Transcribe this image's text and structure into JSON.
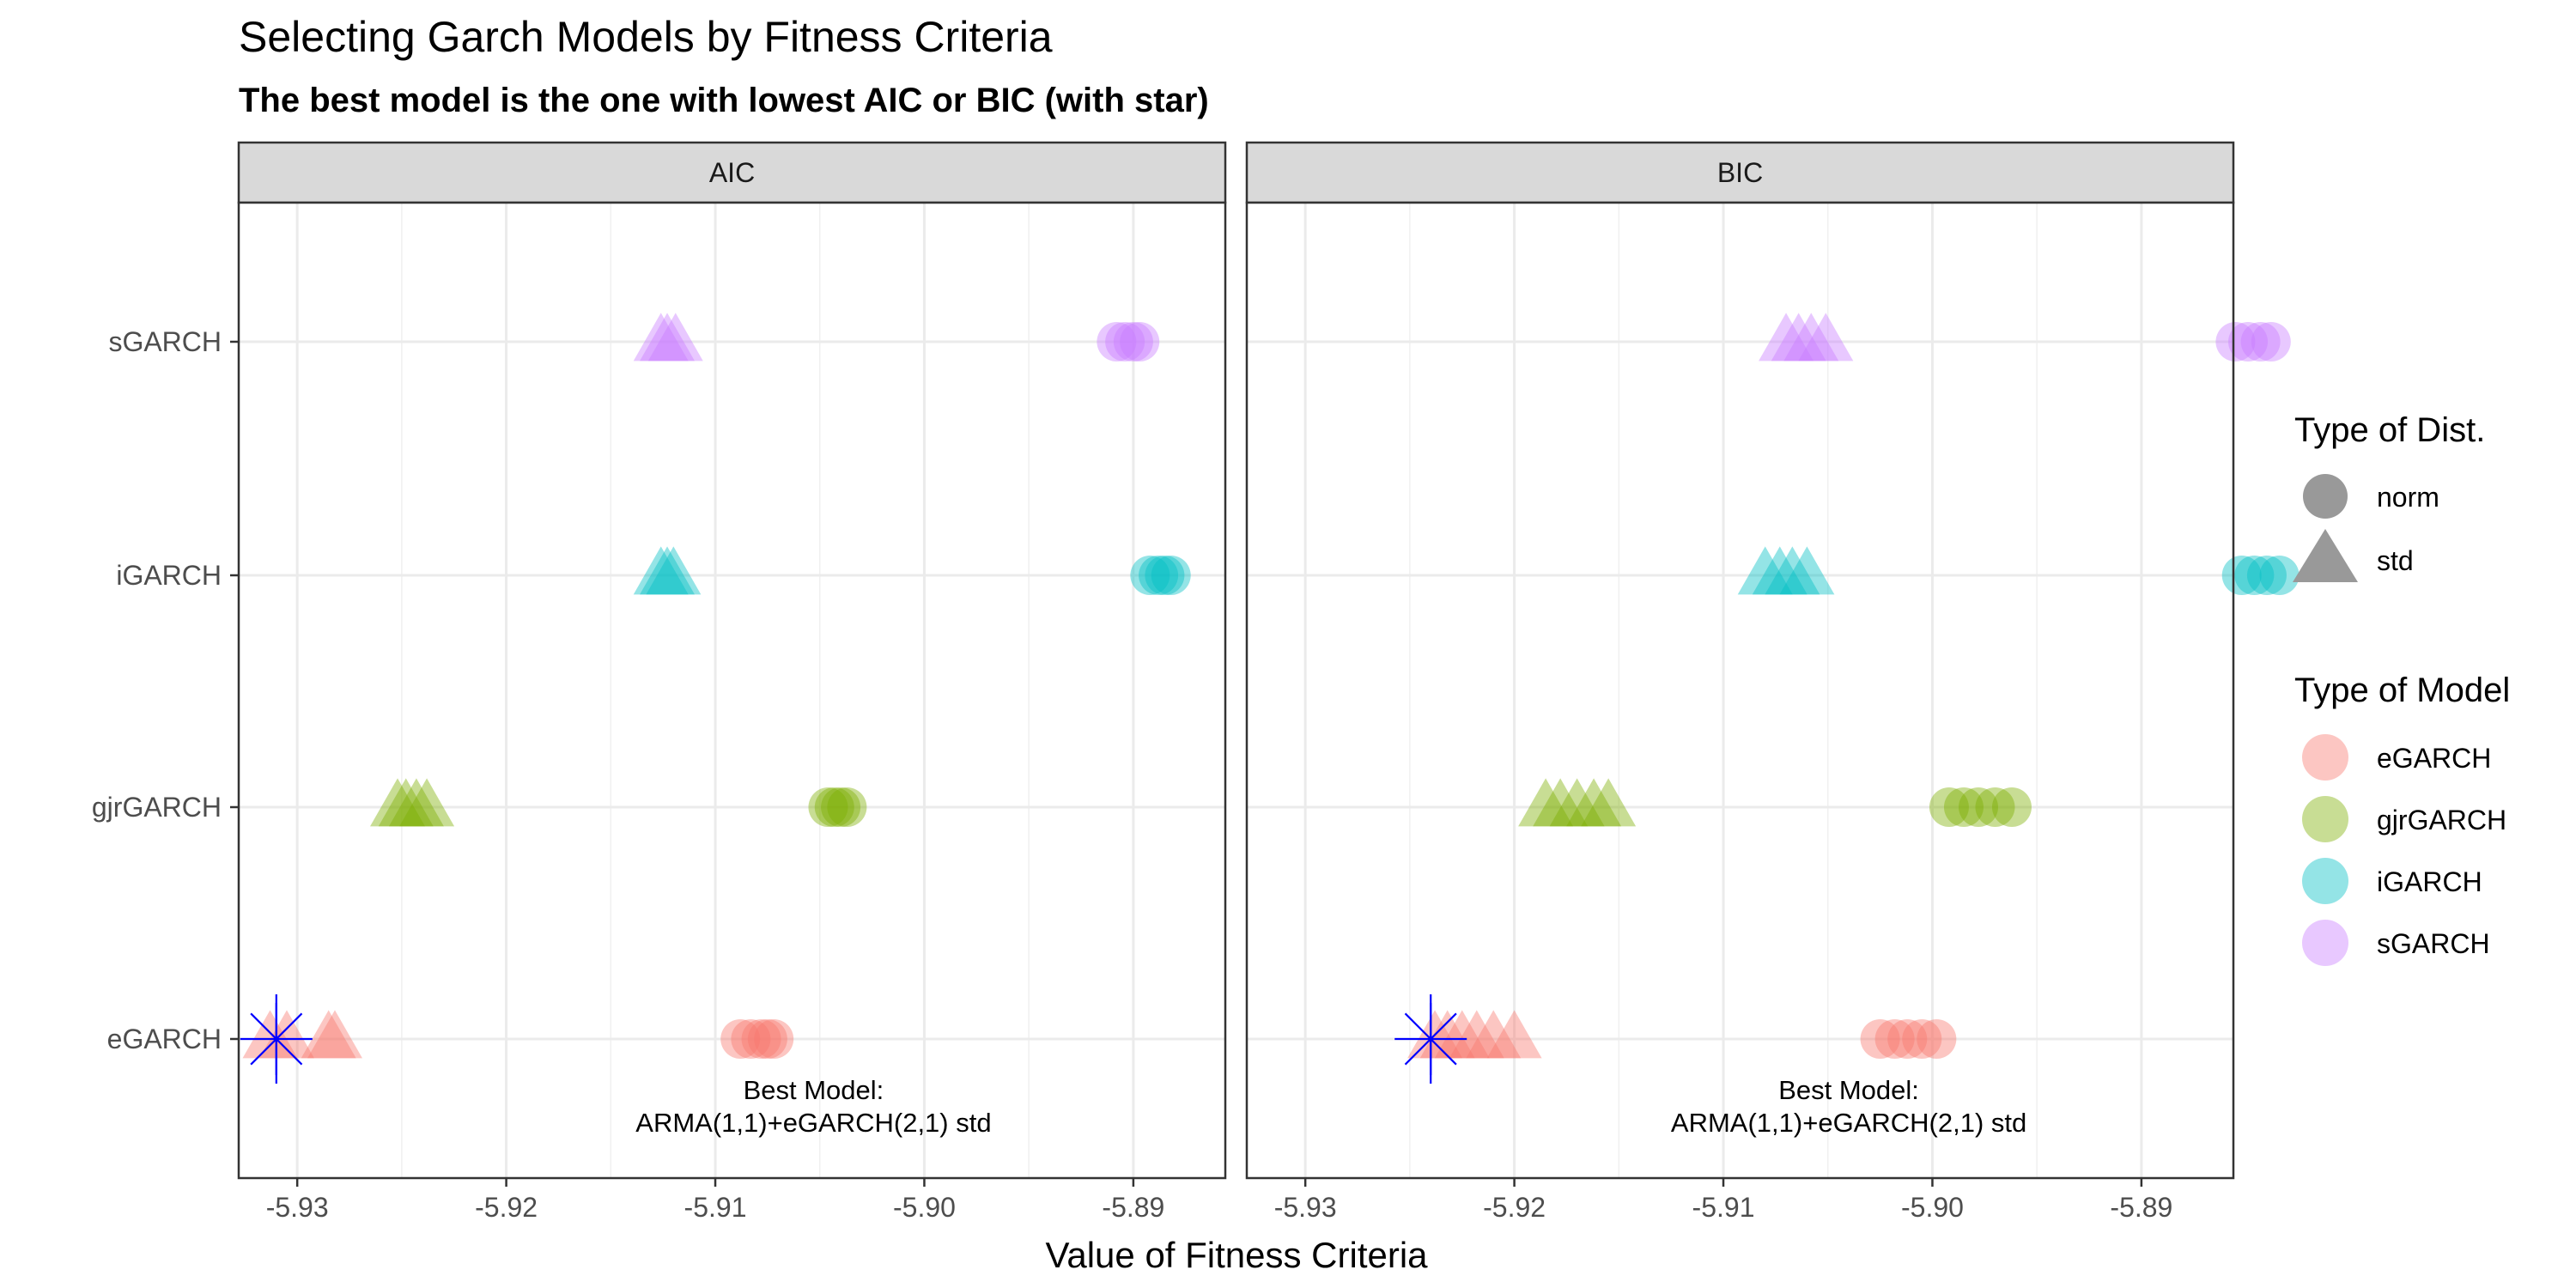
{
  "chart_data": {
    "type": "scatter",
    "title": "Selecting Garch Models by Fitness Criteria",
    "subtitle": "The best model is the one with lowest AIC or BIC (with star)",
    "xlabel": "Value of Fitness Criteria",
    "y_categories": [
      "eGARCH",
      "gjrGARCH",
      "iGARCH",
      "sGARCH"
    ],
    "x_ticks": [
      -5.93,
      -5.92,
      -5.91,
      -5.9,
      -5.89
    ],
    "x_tick_labels": [
      "-5.93",
      "-5.92",
      "-5.91",
      "-5.90",
      "-5.89"
    ],
    "xlim": [
      -5.9328,
      -5.8856
    ],
    "grid": true,
    "colors": {
      "eGARCH": "#F8766D",
      "gjrGARCH": "#7CAE00",
      "iGARCH": "#00BFC4",
      "sGARCH": "#C77CFF",
      "star": "#0000FF"
    },
    "legend": {
      "placement": "right",
      "shape_title": "Type of Dist.",
      "shape_entries": [
        {
          "label": "norm",
          "shape": "circle"
        },
        {
          "label": "std",
          "shape": "triangle"
        }
      ],
      "color_title": "Type of Model",
      "color_entries": [
        "eGARCH",
        "gjrGARCH",
        "iGARCH",
        "sGARCH"
      ]
    },
    "panels": [
      {
        "name": "AIC",
        "points": [
          {
            "model": "eGARCH",
            "dist": "std",
            "x": [
              -5.9313,
              -5.9305,
              -5.9285,
              -5.9282
            ]
          },
          {
            "model": "eGARCH",
            "dist": "norm",
            "x": [
              -5.9088,
              -5.9083,
              -5.9078,
              -5.9075,
              -5.9072
            ]
          },
          {
            "model": "gjrGARCH",
            "dist": "std",
            "x": [
              -5.9252,
              -5.9248,
              -5.9243,
              -5.9238
            ]
          },
          {
            "model": "gjrGARCH",
            "dist": "norm",
            "x": [
              -5.9046,
              -5.9043,
              -5.904,
              -5.9037
            ]
          },
          {
            "model": "iGARCH",
            "dist": "std",
            "x": [
              -5.9126,
              -5.9123,
              -5.912
            ]
          },
          {
            "model": "iGARCH",
            "dist": "norm",
            "x": [
              -5.8892,
              -5.8888,
              -5.8885,
              -5.8882
            ]
          },
          {
            "model": "sGARCH",
            "dist": "std",
            "x": [
              -5.9126,
              -5.9123,
              -5.9119
            ]
          },
          {
            "model": "sGARCH",
            "dist": "norm",
            "x": [
              -5.8908,
              -5.8904,
              -5.89,
              -5.8897
            ]
          }
        ],
        "best": {
          "model": "eGARCH",
          "x": -5.931
        },
        "annotation": [
          "Best Model:",
          "ARMA(1,1)+eGARCH(2,1) std"
        ],
        "annotation_x": -5.9053
      },
      {
        "name": "BIC",
        "points": [
          {
            "model": "eGARCH",
            "dist": "std",
            "x": [
              -5.9238,
              -5.9232,
              -5.9225,
              -5.9218,
              -5.921,
              -5.92
            ]
          },
          {
            "model": "eGARCH",
            "dist": "norm",
            "x": [
              -5.9025,
              -5.9018,
              -5.9012,
              -5.9005,
              -5.8998
            ]
          },
          {
            "model": "gjrGARCH",
            "dist": "std",
            "x": [
              -5.9185,
              -5.9178,
              -5.917,
              -5.9162,
              -5.9155
            ]
          },
          {
            "model": "gjrGARCH",
            "dist": "norm",
            "x": [
              -5.8992,
              -5.8985,
              -5.8978,
              -5.897,
              -5.8962
            ]
          },
          {
            "model": "iGARCH",
            "dist": "std",
            "x": [
              -5.908,
              -5.9073,
              -5.9067,
              -5.906
            ]
          },
          {
            "model": "iGARCH",
            "dist": "norm",
            "x": [
              -5.8852,
              -5.8846,
              -5.884,
              -5.8834
            ]
          },
          {
            "model": "sGARCH",
            "dist": "std",
            "x": [
              -5.907,
              -5.9064,
              -5.9058,
              -5.9051
            ]
          },
          {
            "model": "sGARCH",
            "dist": "norm",
            "x": [
              -5.8855,
              -5.8849,
              -5.8843,
              -5.8838
            ]
          }
        ],
        "best": {
          "model": "eGARCH",
          "x": -5.924
        },
        "annotation": [
          "Best Model:",
          "ARMA(1,1)+eGARCH(2,1) std"
        ],
        "annotation_x": -5.904
      }
    ]
  }
}
